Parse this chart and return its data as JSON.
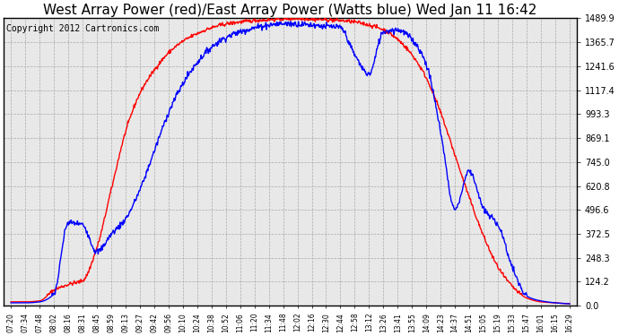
{
  "title": "West Array Power (red)/East Array Power (Watts blue) Wed Jan 11 16:42",
  "copyright": "Copyright 2012 Cartronics.com",
  "y_ticks": [
    0.0,
    124.2,
    248.3,
    372.5,
    496.6,
    620.8,
    745.0,
    869.1,
    993.3,
    1117.4,
    1241.6,
    1365.7,
    1489.9
  ],
  "ylim": [
    0,
    1489.9
  ],
  "x_labels": [
    "07:20",
    "07:34",
    "07:48",
    "08:02",
    "08:16",
    "08:31",
    "08:45",
    "08:59",
    "09:13",
    "09:27",
    "09:42",
    "09:56",
    "10:10",
    "10:24",
    "10:38",
    "10:52",
    "11:06",
    "11:20",
    "11:34",
    "11:48",
    "12:02",
    "12:16",
    "12:30",
    "12:44",
    "12:58",
    "13:12",
    "13:26",
    "13:41",
    "13:55",
    "14:09",
    "14:23",
    "14:37",
    "14:51",
    "15:05",
    "15:19",
    "15:33",
    "15:47",
    "16:01",
    "16:15",
    "16:29"
  ],
  "background_color": "#ffffff",
  "plot_bg_color": "#e8e8e8",
  "grid_color": "#aaaaaa",
  "red_color": "#ff0000",
  "blue_color": "#0000ff",
  "title_fontsize": 11,
  "copyright_fontsize": 7
}
